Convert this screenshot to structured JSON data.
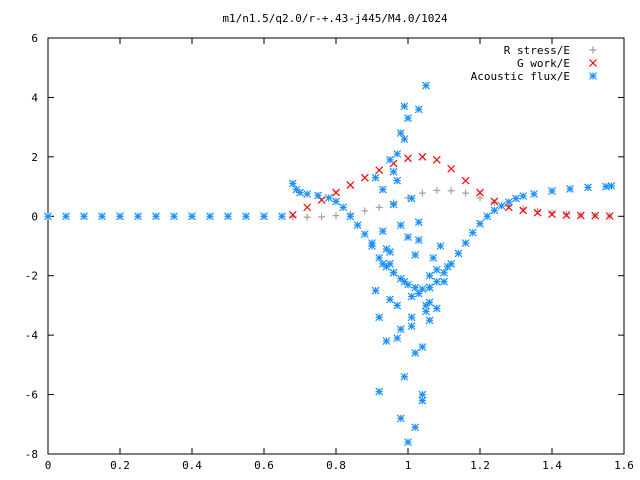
{
  "chart_data": {
    "type": "scatter",
    "title": "m1/n1.5/q2.0/r-+.43-j445/M4.0/1024",
    "xlabel": "",
    "ylabel": "",
    "xlim": [
      0,
      1.6
    ],
    "ylim": [
      -8,
      6
    ],
    "xticks": [
      "0",
      "0.2",
      "0.4",
      "0.6",
      "0.8",
      "1",
      "1.2",
      "1.4",
      "1.6"
    ],
    "yticks": [
      "6",
      "4",
      "2",
      "0",
      "-2",
      "-4",
      "-6",
      "-8"
    ],
    "grid": false,
    "legend_position": "top-right",
    "series": [
      {
        "name": "R stress/E",
        "marker": "+",
        "color": "#a0a0a0",
        "x": [
          0.68,
          0.72,
          0.76,
          0.8,
          0.84,
          0.88,
          0.92,
          0.96,
          1.0,
          1.04,
          1.08,
          1.12,
          1.16,
          1.2,
          1.24,
          1.28,
          1.32,
          1.36,
          1.4,
          1.44,
          1.48,
          1.52,
          1.56
        ],
        "y": [
          -0.02,
          -0.03,
          -0.02,
          0.02,
          0.08,
          0.18,
          0.3,
          0.45,
          0.62,
          0.78,
          0.87,
          0.86,
          0.78,
          0.62,
          0.47,
          0.35,
          0.25,
          0.17,
          0.11,
          0.07,
          0.04,
          0.02,
          0.01
        ]
      },
      {
        "name": "G work/E",
        "marker": "x",
        "color": "#ff0000",
        "x": [
          0.68,
          0.72,
          0.76,
          0.8,
          0.84,
          0.88,
          0.92,
          0.96,
          1.0,
          1.04,
          1.08,
          1.12,
          1.16,
          1.2,
          1.24,
          1.28,
          1.32,
          1.36,
          1.4,
          1.44,
          1.48,
          1.52,
          1.56
        ],
        "y": [
          0.05,
          0.3,
          0.55,
          0.8,
          1.05,
          1.3,
          1.55,
          1.78,
          1.95,
          2.0,
          1.9,
          1.6,
          1.2,
          0.8,
          0.5,
          0.3,
          0.2,
          0.12,
          0.07,
          0.04,
          0.03,
          0.02,
          0.01
        ]
      },
      {
        "name": "Acoustic flux/E",
        "marker": "*",
        "color": "#1e90ff",
        "x": [
          0.0,
          0.05,
          0.1,
          0.15,
          0.2,
          0.25,
          0.3,
          0.35,
          0.4,
          0.45,
          0.5,
          0.55,
          0.6,
          0.65,
          0.68,
          0.69,
          0.7,
          0.72,
          0.75,
          0.78,
          0.8,
          0.82,
          0.84,
          0.86,
          0.88,
          0.9,
          0.92,
          0.94,
          0.96,
          0.98,
          1.0,
          1.02,
          1.04,
          1.06,
          1.08,
          1.1,
          1.12,
          1.14,
          1.16,
          1.18,
          1.2,
          1.22,
          1.24,
          1.26,
          1.28,
          1.3,
          1.32,
          1.35,
          1.4,
          1.45,
          1.5,
          1.55,
          1.565,
          0.9,
          0.91,
          0.92,
          0.93,
          0.94,
          0.95,
          0.96,
          0.97,
          0.98,
          0.99,
          1.0,
          1.01,
          1.02,
          1.03,
          1.04,
          1.05,
          1.06,
          1.07,
          1.08,
          0.91,
          0.93,
          0.95,
          0.97,
          0.99,
          1.01,
          1.03,
          1.05,
          0.92,
          0.94,
          0.96,
          0.98,
          1.0,
          1.02,
          1.04,
          1.06,
          0.95,
          0.97,
          0.99,
          1.01,
          1.03,
          1.05,
          0.97,
          0.99,
          1.02,
          1.04,
          1.06,
          0.96,
          0.98,
          1.0,
          1.03,
          0.93,
          0.95,
          0.98,
          1.01,
          1.06,
          1.09,
          1.11,
          1.1,
          1.08
        ],
        "y": [
          0,
          0,
          0,
          0,
          0,
          0,
          0,
          0,
          0,
          0,
          0,
          0,
          0,
          0,
          1.1,
          0.9,
          0.8,
          0.75,
          0.7,
          0.62,
          0.5,
          0.3,
          0.0,
          -0.3,
          -0.6,
          -1.0,
          -1.4,
          -1.7,
          -1.9,
          -2.1,
          -2.3,
          -2.4,
          -2.45,
          -2.4,
          -2.2,
          -1.9,
          -1.6,
          -1.25,
          -0.9,
          -0.55,
          -0.25,
          0.0,
          0.2,
          0.35,
          0.48,
          0.6,
          0.68,
          0.75,
          0.85,
          0.92,
          0.97,
          1.0,
          1.02,
          -0.9,
          -2.5,
          -3.4,
          -1.6,
          -4.2,
          -2.8,
          -1.9,
          -3.0,
          -3.8,
          -2.2,
          -0.7,
          -3.4,
          -1.3,
          -2.6,
          -4.4,
          -3.2,
          -2.0,
          -1.4,
          -1.8,
          1.3,
          0.9,
          1.9,
          1.2,
          2.6,
          0.6,
          3.6,
          4.4,
          -5.9,
          -1.1,
          0.4,
          -6.8,
          -7.6,
          -4.6,
          -6.2,
          -2.9,
          -1.6,
          -4.1,
          -5.4,
          -3.7,
          -0.8,
          -3.0,
          2.1,
          3.7,
          -7.1,
          -6.0,
          -2.4,
          1.5,
          2.8,
          3.3,
          -0.2,
          -0.5,
          -1.2,
          -0.3,
          -2.7,
          -3.5,
          -1.0,
          -1.7,
          -2.2,
          -3.1
        ]
      }
    ]
  }
}
